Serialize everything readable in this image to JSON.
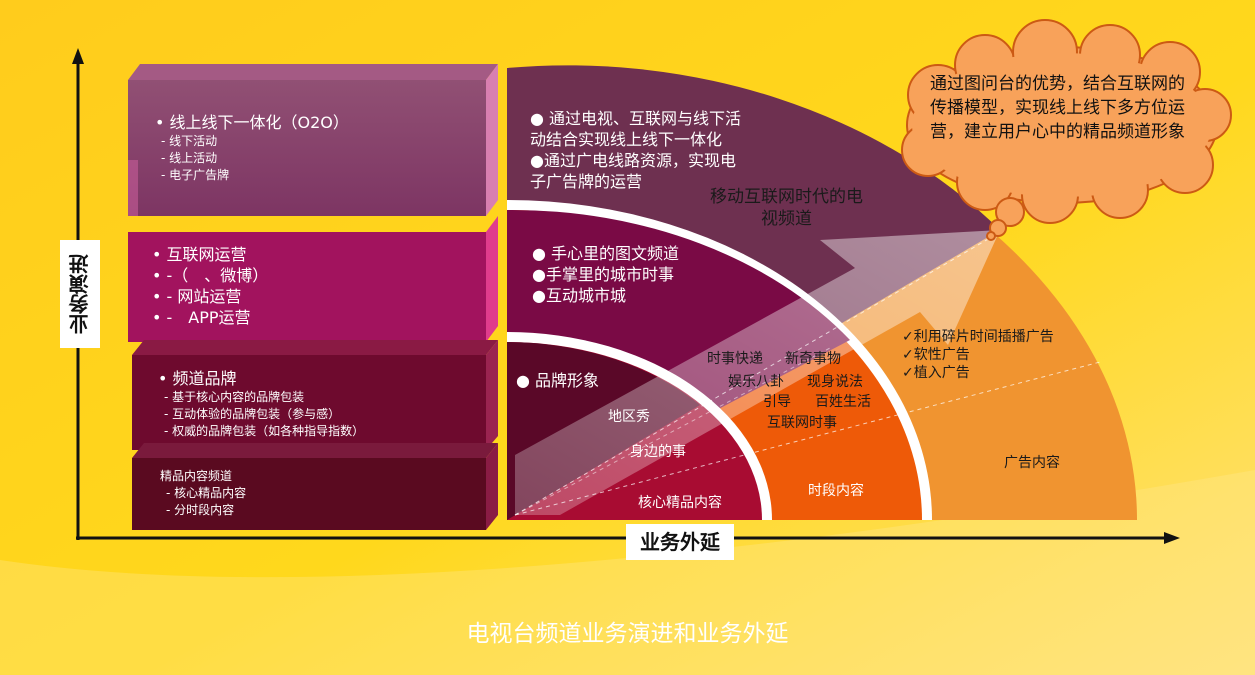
{
  "axes": {
    "y_label": "业务演进",
    "x_label": "业务外延"
  },
  "boxes": [
    {
      "title": "• 线上线下一体化（O2O）",
      "items": [
        "- 线下活动",
        "- 线上活动",
        "- 电子广告牌"
      ]
    },
    {
      "title": "• 互联网运营",
      "items": [
        "• -（　、微博）",
        "• - 网站运营",
        "• -　APP运营"
      ]
    },
    {
      "title": "• 频道品牌",
      "items": [
        "- 基于核心内容的品牌包装",
        "- 互动体验的品牌包装（参与感）",
        "- 权威的品牌包装（如各种指导指数）"
      ]
    },
    {
      "title": "精品内容频道",
      "items": [
        "- 核心精品内容",
        "- 分时段内容"
      ]
    }
  ],
  "arc_texts": {
    "o2o": [
      "● 通过电视、互联网与线下活",
      "动结合实现线上线下一体化",
      "●通过广电线路资源，实现电",
      "子广告牌的运营"
    ],
    "internet": [
      "● 手心里的图文频道",
      "●手掌里的城市时事",
      "●互动城市城"
    ],
    "brand": [
      "● 品牌形象"
    ]
  },
  "arrow_label": [
    "移动互联网时代的电",
    "视频道"
  ],
  "inner_labels": {
    "region": "地区秀",
    "near": "身边的事",
    "core": "核心精品内容"
  },
  "middle_labels": {
    "row1a": "时事快递",
    "row1b": "新奇事物",
    "row2a": "娱乐八卦",
    "row2b": "现身说法",
    "row3a": "引导",
    "row3b": "百姓生活",
    "row4": "互联网时事",
    "period": "时段内容"
  },
  "outer_labels": {
    "items": [
      "✓利用碎片时间插播广告",
      "✓软性广告",
      "✓植入广告"
    ],
    "ad": "广告内容"
  },
  "cloud_text": "通过图问台的优势，结合互联网的传播模型，实现线上线下多方位运营，建立用户心中的精品频道形象",
  "footer_title": "电视台频道业务演进和业务外延",
  "colors": {
    "background": "#ffd21a",
    "box_o2o": "#8a3f6e",
    "box_internet": "#9c1258",
    "box_brand": "#6e0a2e",
    "box_content": "#5a0a20",
    "band_o2o": "#6e3050",
    "band_internet": "#7a0a45",
    "band_brand": "#5a0828",
    "core": "#a80c32",
    "period": "#ee5a08",
    "ad": "#f09430",
    "cloud": "#f8a25a"
  }
}
